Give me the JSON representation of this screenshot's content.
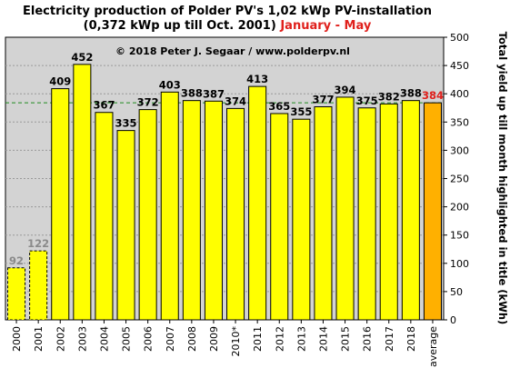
{
  "title": {
    "line1": "Electricity production  of Polder PV's 1,02 kWp PV-installation",
    "line2_black": "(0,372 kWp up till Oct. 2001) ",
    "line2_red": "January - May"
  },
  "credit": "© 2018 Peter J. Segaar / www.polderpv.nl",
  "colors": {
    "plot_background": "#d3d3d3",
    "bar_fill": "#ffff00",
    "average_fill": "#ffb000",
    "average_line": "#1f8a1f",
    "highlight_text": "#e0201c",
    "partial_value_text": "#8a8a8a"
  },
  "chart_data": {
    "type": "bar",
    "categories": [
      "2000",
      "2001",
      "2002",
      "2003",
      "2004",
      "2005",
      "2006",
      "2007",
      "2008",
      "2009",
      "2010*",
      "2011",
      "2012",
      "2013",
      "2014",
      "2015",
      "2016",
      "2017",
      "2018",
      "average"
    ],
    "values": [
      92,
      122,
      409,
      452,
      367,
      335,
      372,
      403,
      388,
      387,
      374,
      413,
      365,
      355,
      377,
      394,
      375,
      382,
      388,
      384
    ],
    "dashed_bars": [
      "2000",
      "2001"
    ],
    "highlighted_bar": "average",
    "average_reference_line": 384,
    "ylabel": "Total yield up till month highlighted in title (kWh)",
    "xlabel": "",
    "ylim": [
      0,
      500
    ],
    "yticks": [
      0,
      50,
      100,
      150,
      200,
      250,
      300,
      350,
      400,
      450,
      500
    ],
    "y_axis_side": "right",
    "grid": true
  }
}
